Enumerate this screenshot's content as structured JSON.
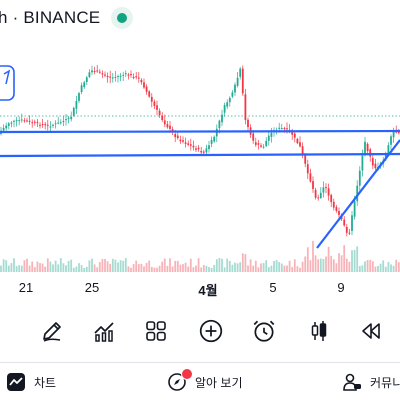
{
  "header": {
    "title": "h · BINANCE",
    "status_color": "#10a37f"
  },
  "chart": {
    "x_labels": [
      "21",
      "25",
      "4월",
      "5",
      "9"
    ],
    "colors": {
      "up": "#22ab94",
      "down": "#f23645",
      "trendline": "#2962ff",
      "volume_up": "#a6dbd1",
      "volume_down": "#f7b4b8"
    }
  },
  "toolbar": {
    "items": [
      {
        "name": "draw-tool",
        "icon": "pencil-icon"
      },
      {
        "name": "indicators-tool",
        "icon": "indicator-chart-icon"
      },
      {
        "name": "templates-tool",
        "icon": "grid-icon"
      },
      {
        "name": "add-tool",
        "icon": "plus-circle-icon"
      },
      {
        "name": "alert-tool",
        "icon": "alarm-clock-icon"
      },
      {
        "name": "chart-type-tool",
        "icon": "candlestick-icon"
      },
      {
        "name": "replay-tool",
        "icon": "rewind-icon"
      }
    ]
  },
  "nav": {
    "chart_label": "차트",
    "ideas_label": "알아 보기",
    "community_label": "커뮤니티"
  }
}
